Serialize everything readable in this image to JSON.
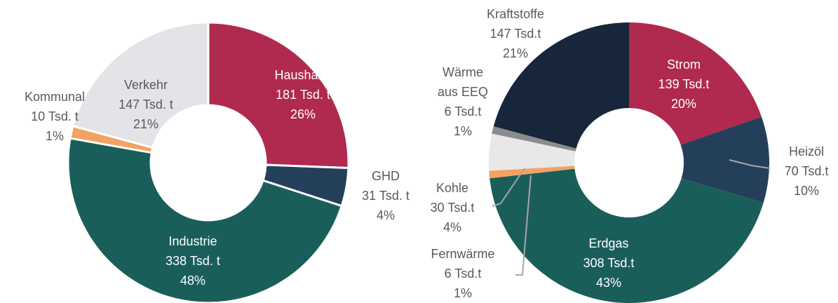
{
  "chart_data": [
    {
      "type": "donut",
      "categories": [
        "Haushalte",
        "GHD",
        "Industrie",
        "Kommunal",
        "Verkehr"
      ],
      "values": [
        181,
        31,
        338,
        10,
        147
      ],
      "value_labels": [
        "181 Tsd. t",
        "31 Tsd. t",
        "338 Tsd. t",
        "10 Tsd. t",
        "147 Tsd. t"
      ],
      "shares": [
        26,
        4,
        48,
        1,
        21
      ],
      "share_labels": [
        "26%",
        "4%",
        "48%",
        "1%",
        "21%"
      ],
      "colors": [
        "#b0294e",
        "#243f5a",
        "#1a5e5a",
        "#f4a261",
        "#e4e4e8"
      ]
    },
    {
      "type": "donut",
      "categories": [
        "Strom",
        "Heizöl",
        "Erdgas",
        "Fernwärme",
        "Kohle",
        "Wärme aus EEQ",
        "Kraftstoffe"
      ],
      "values": [
        139,
        70,
        308,
        6,
        30,
        6,
        147
      ],
      "value_labels": [
        "139 Tsd.t",
        "70 Tsd.t",
        "308 Tsd.t",
        "6 Tsd.t",
        "30 Tsd.t",
        "6 Tsd.t",
        "147 Tsd.t"
      ],
      "shares": [
        20,
        10,
        43,
        1,
        4,
        1,
        21
      ],
      "share_labels": [
        "20%",
        "10%",
        "43%",
        "1%",
        "4%",
        "1%",
        "21%"
      ],
      "colors": [
        "#b0294e",
        "#243f5a",
        "#1a5e5a",
        "#f4a261",
        "#e8e8e8",
        "#8c8c8c",
        "#17263a"
      ]
    }
  ]
}
